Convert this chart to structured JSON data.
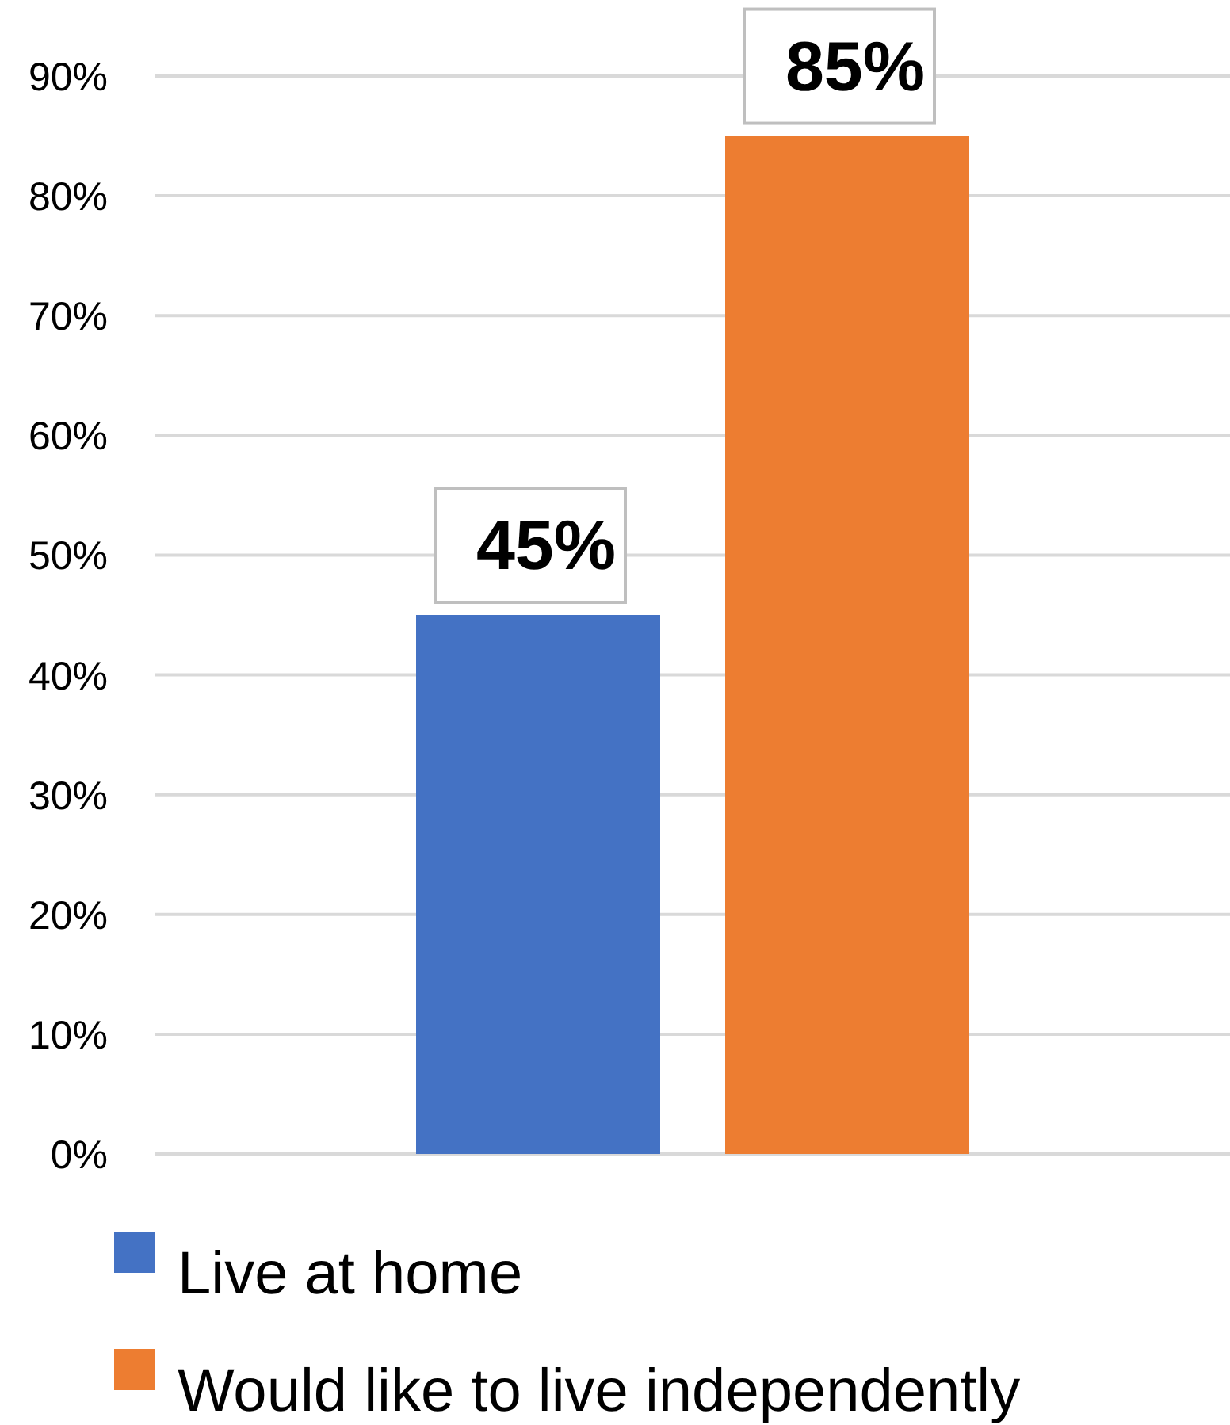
{
  "chart_data": {
    "type": "bar",
    "categories": [
      null
    ],
    "series": [
      {
        "name": "Live at home",
        "color": "#4472c4",
        "values": [
          45
        ],
        "value_labels": [
          "45%"
        ]
      },
      {
        "name": "Would like to live independently",
        "color": "#ed7d31",
        "values": [
          85
        ],
        "value_labels": [
          "85%"
        ]
      }
    ],
    "ylim": [
      0,
      90
    ],
    "yticks": [
      {
        "value": 0,
        "label": "0%"
      },
      {
        "value": 10,
        "label": "10%"
      },
      {
        "value": 20,
        "label": "20%"
      },
      {
        "value": 30,
        "label": "30%"
      },
      {
        "value": 40,
        "label": "40%"
      },
      {
        "value": 50,
        "label": "50%"
      },
      {
        "value": 60,
        "label": "60%"
      },
      {
        "value": 70,
        "label": "70%"
      },
      {
        "value": 80,
        "label": "80%"
      },
      {
        "value": 90,
        "label": "90%"
      }
    ],
    "grid": "y",
    "legend": "bottom",
    "tick_labels": "y"
  }
}
